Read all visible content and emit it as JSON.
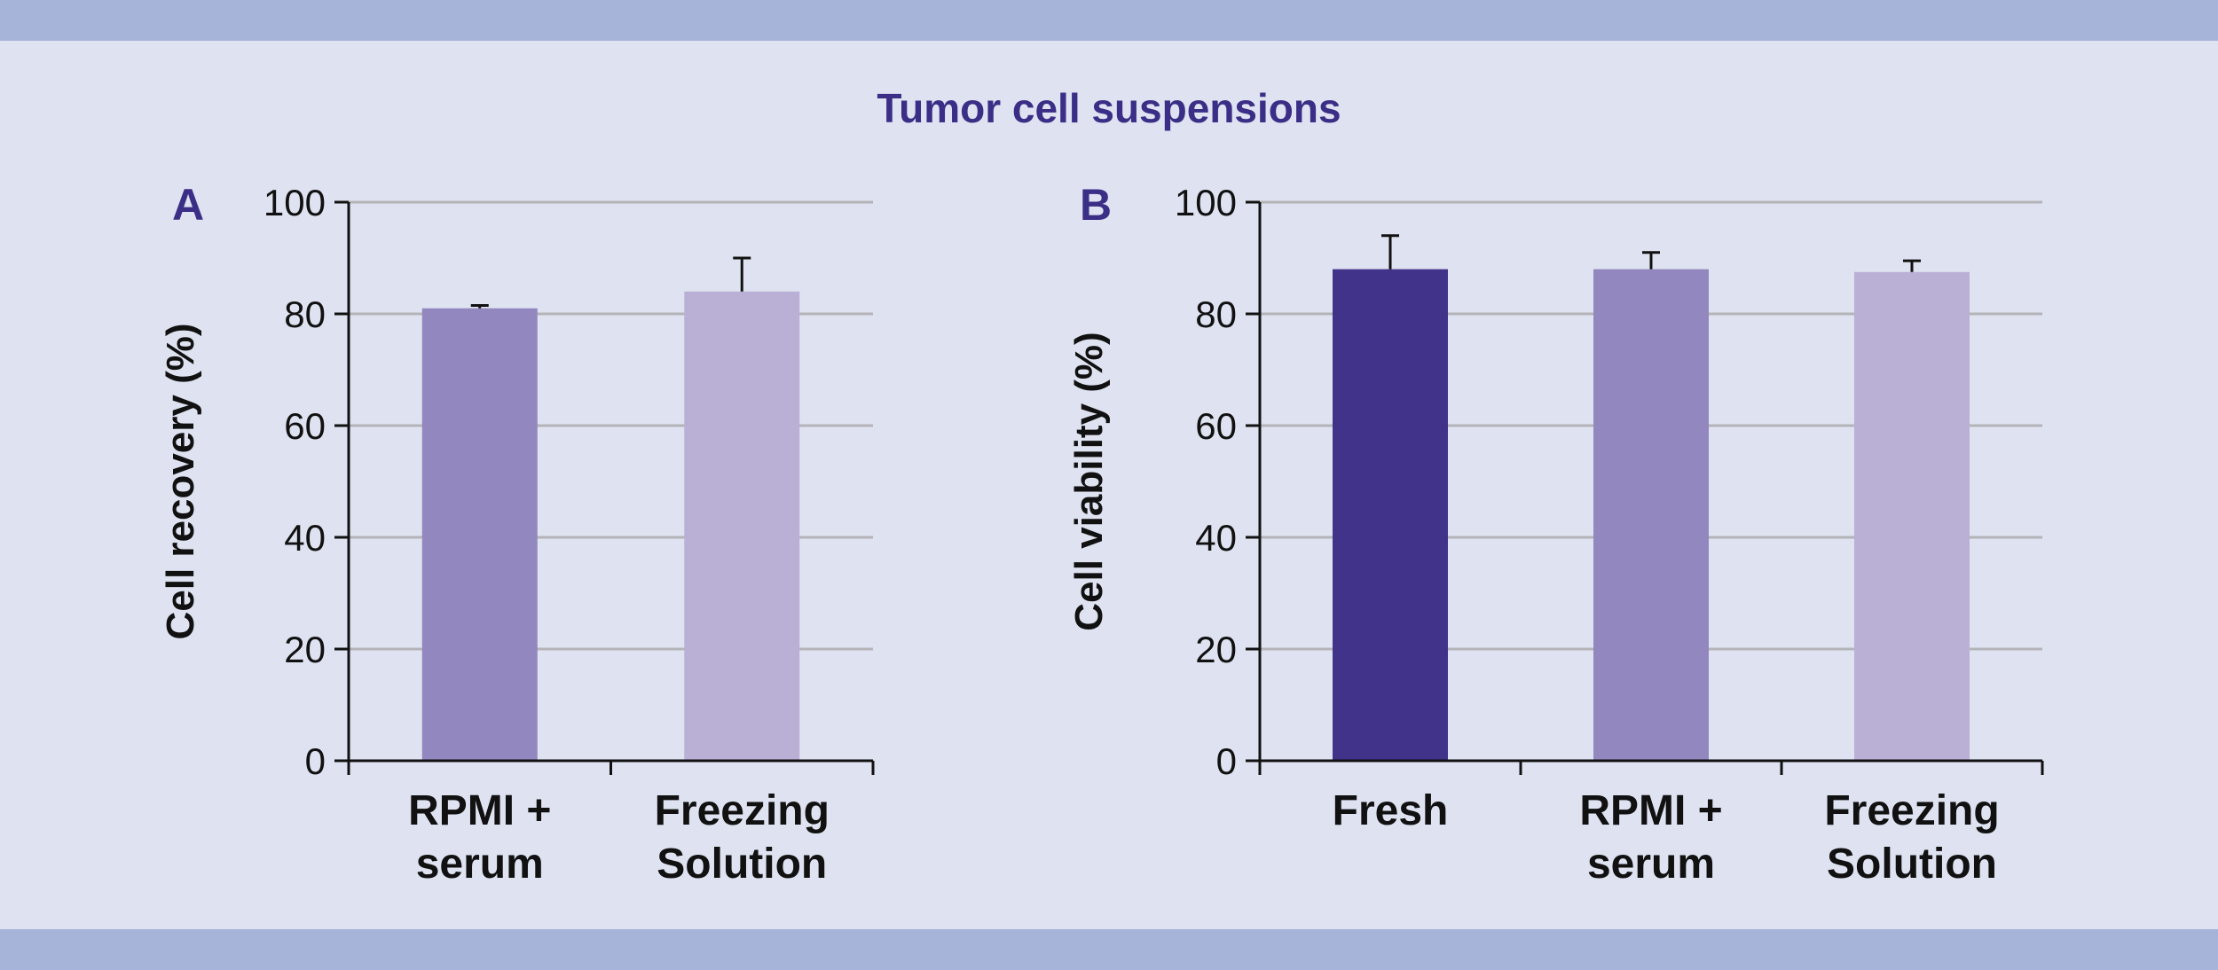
{
  "colors": {
    "background": "#dfe3f1",
    "band": "#a7b4da",
    "title": "#3b2e86",
    "grid": "#b4b4b8",
    "axis": "#111111"
  },
  "title": "Tumor cell suspensions",
  "chart_data": [
    {
      "type": "bar",
      "panel": "A",
      "ylabel": "Cell recovery (%)",
      "ylim": [
        0,
        100
      ],
      "yticks": [
        0,
        20,
        40,
        60,
        80,
        100
      ],
      "grid": true,
      "categories": [
        [
          "RPMI +",
          "serum"
        ],
        [
          "Freezing",
          "Solution"
        ]
      ],
      "values": [
        81,
        84
      ],
      "errors": [
        0.5,
        6
      ],
      "colors": [
        "#9287be",
        "#bab0d6"
      ]
    },
    {
      "type": "bar",
      "panel": "B",
      "ylabel": "Cell viability (%)",
      "ylim": [
        0,
        100
      ],
      "yticks": [
        0,
        20,
        40,
        60,
        80,
        100
      ],
      "grid": true,
      "categories": [
        [
          "Fresh"
        ],
        [
          "RPMI +",
          "serum"
        ],
        [
          "Freezing",
          "Solution"
        ]
      ],
      "values": [
        88,
        88,
        87.5
      ],
      "errors": [
        6,
        3,
        2
      ],
      "colors": [
        "#42338a",
        "#9287be",
        "#bab0d6"
      ]
    }
  ]
}
